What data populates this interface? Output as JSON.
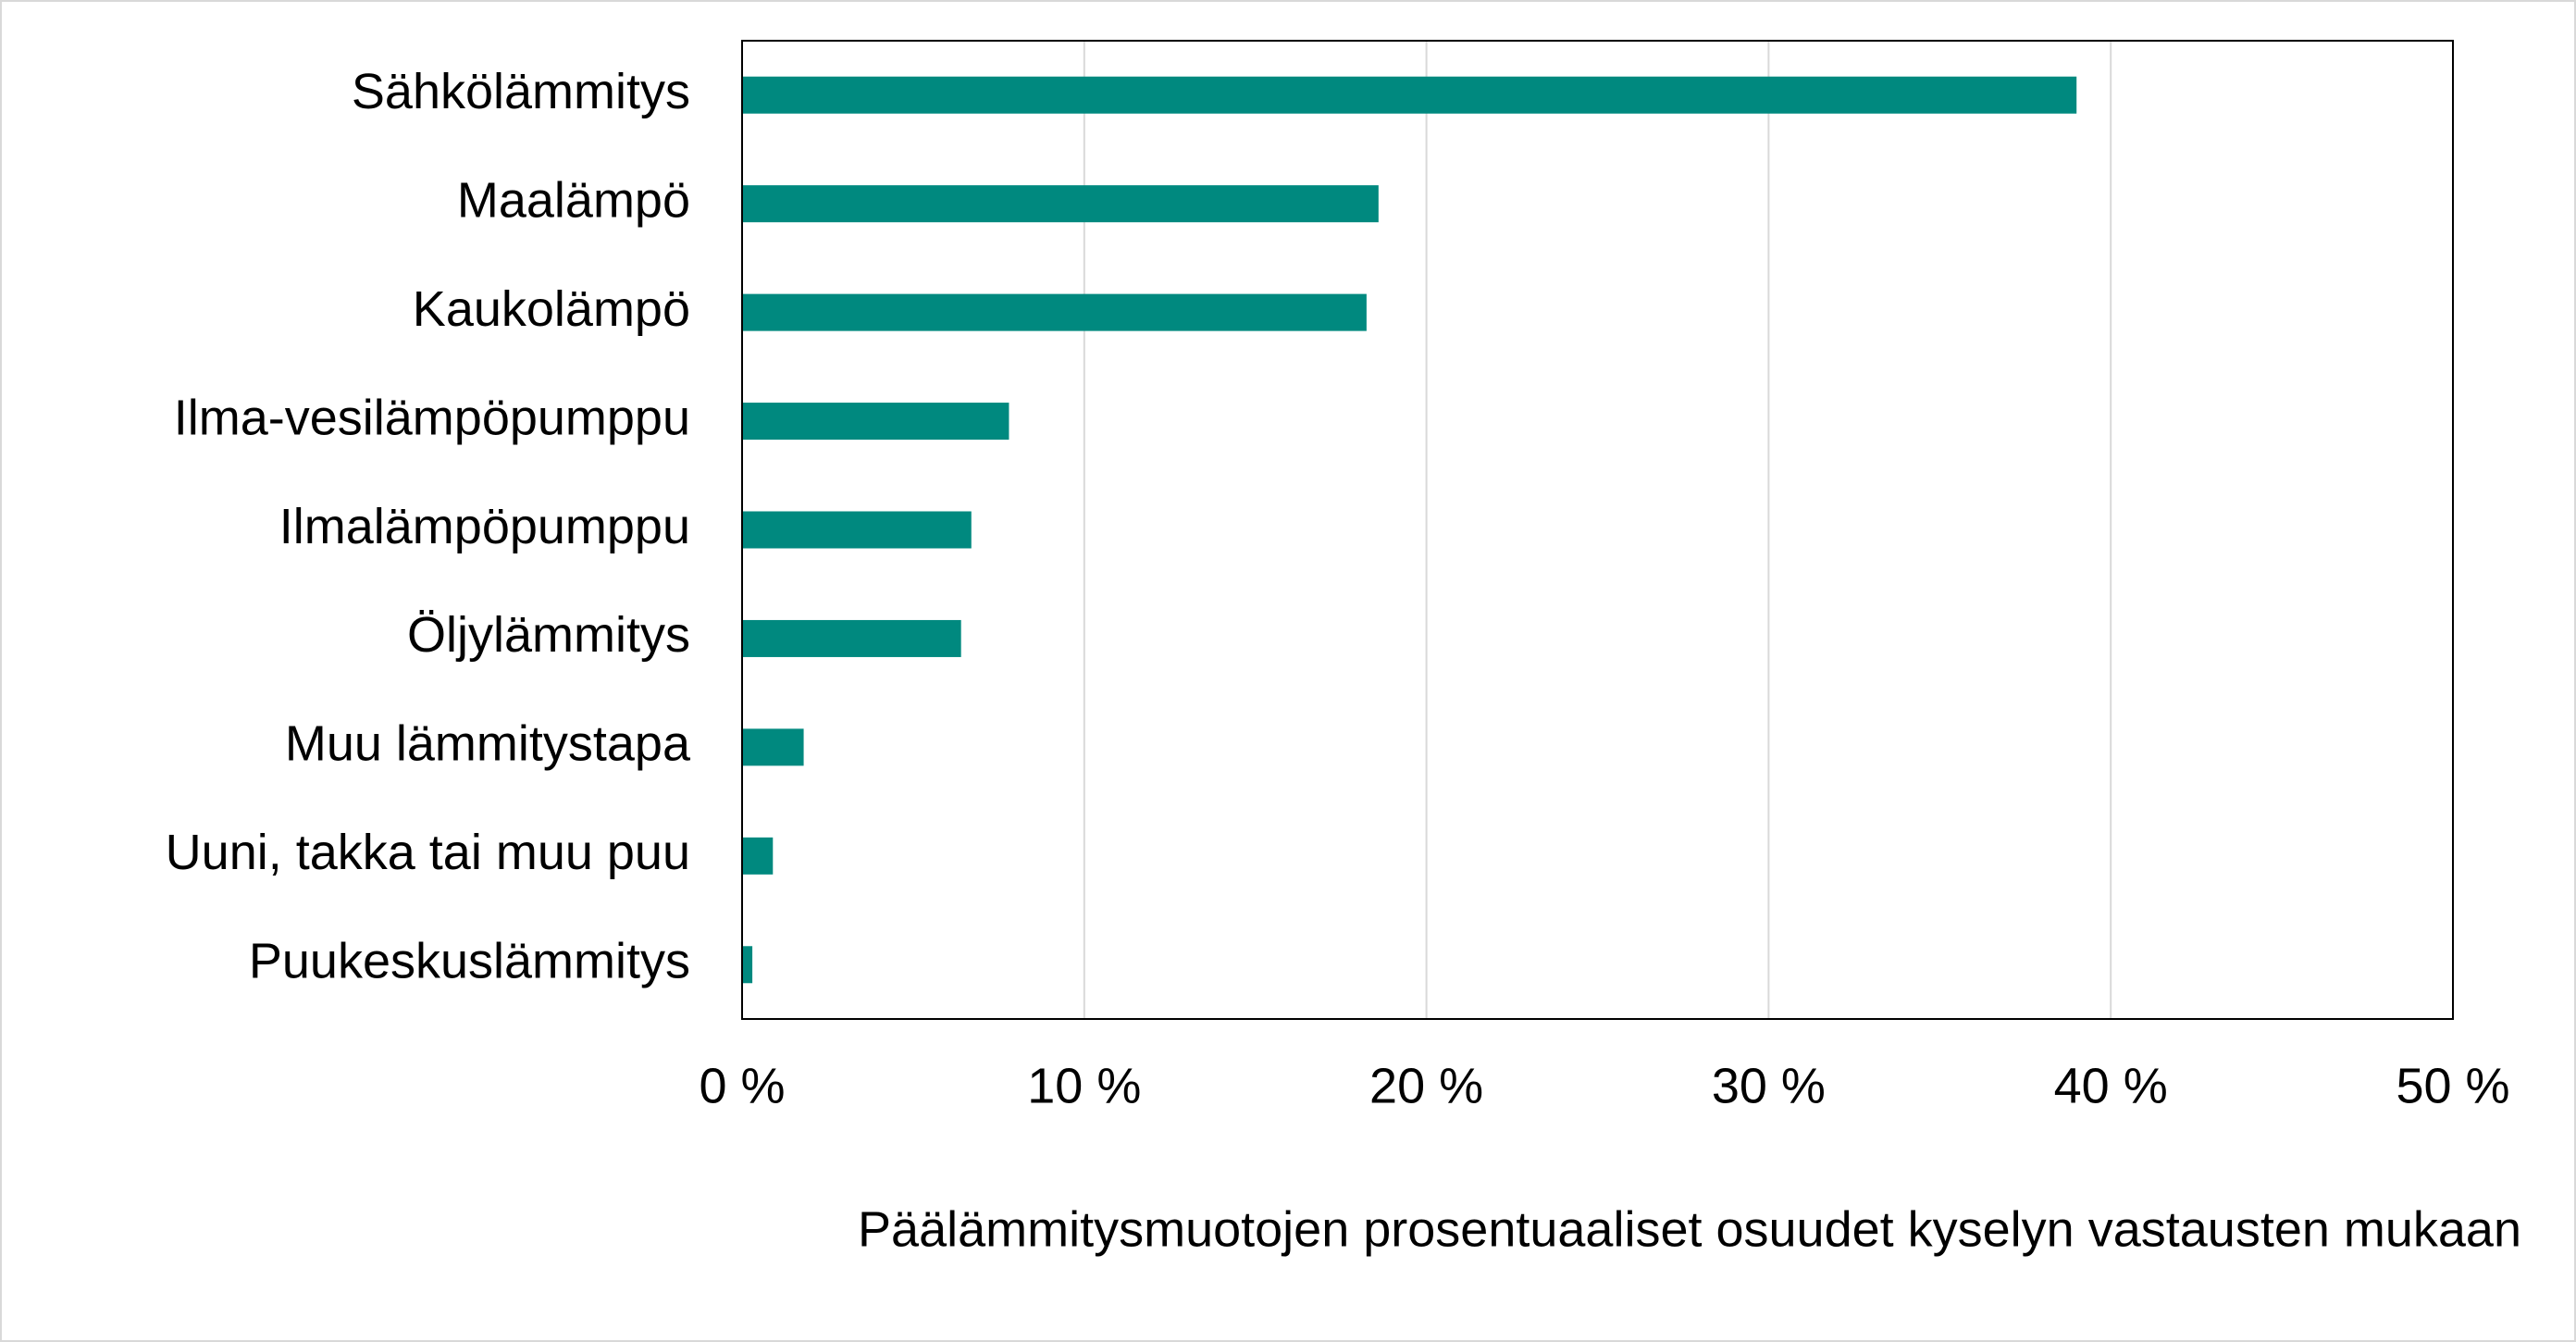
{
  "chart_data": {
    "type": "bar",
    "orientation": "horizontal",
    "x_label": "Päälämmitysmuotojen prosentuaaliset osuudet kyselyn vastausten mukaan",
    "categories": [
      "Sähkölämmitys",
      "Maalämpö",
      "Kaukolämpö",
      "Ilma-vesilämpöpumppu",
      "Ilmalämpöpumppu",
      "Öljylämmitys",
      "Muu lämmitystapa",
      "Uuni, takka tai muu puu",
      "Puukeskuslämmitys"
    ],
    "values": [
      39.0,
      18.6,
      18.25,
      7.8,
      6.7,
      6.4,
      1.8,
      0.9,
      0.3
    ],
    "color": "#00897f",
    "xlim": [
      0,
      50
    ],
    "xticks": [
      {
        "value": 0,
        "label": "0 %"
      },
      {
        "value": 10,
        "label": "10 %"
      },
      {
        "value": 20,
        "label": "20 %"
      },
      {
        "value": 30,
        "label": "30 %"
      },
      {
        "value": 40,
        "label": "40 %"
      },
      {
        "value": 50,
        "label": "50 %"
      }
    ],
    "grid": true
  }
}
